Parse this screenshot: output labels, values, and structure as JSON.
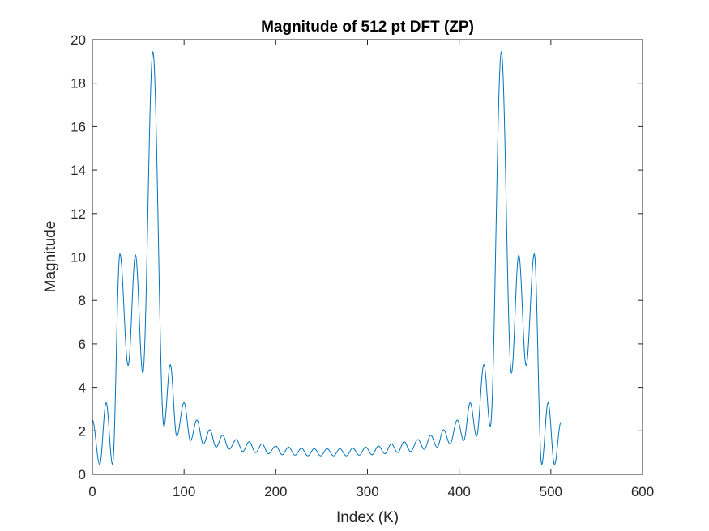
{
  "chart_data": {
    "type": "line",
    "title": "Magnitude of 512 pt DFT (ZP)",
    "xlabel": "Index (K)",
    "ylabel": "Magnitude",
    "xlim": [
      0,
      600
    ],
    "ylim": [
      0,
      20
    ],
    "xticks": [
      "0",
      "100",
      "200",
      "300",
      "400",
      "500",
      "600"
    ],
    "yticks": [
      "0",
      "2",
      "4",
      "6",
      "8",
      "10",
      "12",
      "14",
      "16",
      "18",
      "20"
    ],
    "grid": false,
    "line_color": "#0072BD",
    "series": [
      {
        "x": [
          0,
          8,
          15,
          22,
          30,
          39,
          47,
          55,
          66,
          78,
          85,
          92,
          100,
          107,
          114,
          121,
          128,
          135,
          142,
          149,
          157,
          164,
          171,
          178,
          185,
          192,
          200,
          207,
          214,
          221,
          228,
          235,
          242,
          249,
          256,
          263,
          270,
          277,
          284,
          291,
          298,
          305,
          312,
          319,
          326,
          333,
          340,
          347,
          355,
          362,
          369,
          376,
          383,
          390,
          398,
          405,
          412,
          419,
          427,
          434,
          446,
          457,
          465,
          473,
          482,
          490,
          497,
          504,
          511
        ],
        "y": [
          2.5,
          0.45,
          3.3,
          0.45,
          10.15,
          5.0,
          10.1,
          4.65,
          19.45,
          2.2,
          5.05,
          1.75,
          3.3,
          1.55,
          2.5,
          1.4,
          2.05,
          1.25,
          1.8,
          1.15,
          1.6,
          1.05,
          1.5,
          1.0,
          1.4,
          0.95,
          1.3,
          0.9,
          1.25,
          0.88,
          1.2,
          0.85,
          1.18,
          0.85,
          1.18,
          0.85,
          1.18,
          0.85,
          1.2,
          0.88,
          1.25,
          0.9,
          1.3,
          0.95,
          1.4,
          1.0,
          1.5,
          1.05,
          1.6,
          1.15,
          1.8,
          1.25,
          2.05,
          1.4,
          2.5,
          1.55,
          3.3,
          1.75,
          5.05,
          2.2,
          19.45,
          4.65,
          10.1,
          5.0,
          10.15,
          0.45,
          3.3,
          0.45,
          2.4
        ]
      }
    ]
  }
}
